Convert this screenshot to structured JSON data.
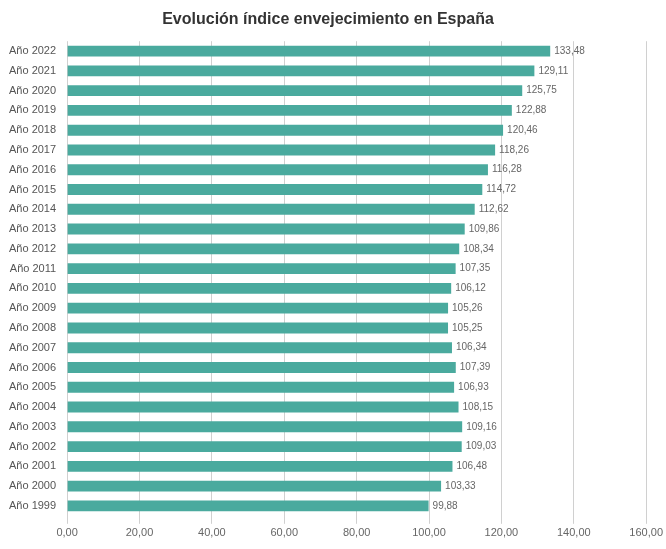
{
  "chart_data": {
    "type": "bar",
    "orientation": "horizontal",
    "title": "Evolución índice envejecimiento en España",
    "categories": [
      "Año 2022",
      "Año 2021",
      "Año 2020",
      "Año 2019",
      "Año 2018",
      "Año 2017",
      "Año 2016",
      "Año 2015",
      "Año 2014",
      "Año 2013",
      "Año 2012",
      "Año 2011",
      "Año 2010",
      "Año 2009",
      "Año 2008",
      "Año 2007",
      "Año 2006",
      "Año 2005",
      "Año 2004",
      "Año 2003",
      "Año 2002",
      "Año 2001",
      "Año 2000",
      "Año 1999"
    ],
    "values": [
      133.48,
      129.11,
      125.75,
      122.88,
      120.46,
      118.26,
      116.28,
      114.72,
      112.62,
      109.86,
      108.34,
      107.35,
      106.12,
      105.26,
      105.25,
      106.34,
      107.39,
      106.93,
      108.15,
      109.16,
      109.03,
      106.48,
      103.33,
      99.88
    ],
    "value_labels": [
      "133,48",
      "129,11",
      "125,75",
      "122,88",
      "120,46",
      "118,26",
      "116,28",
      "114,72",
      "112,62",
      "109,86",
      "108,34",
      "107,35",
      "106,12",
      "105,26",
      "105,25",
      "106,34",
      "107,39",
      "106,93",
      "108,15",
      "109,16",
      "109,03",
      "106,48",
      "103,33",
      "99,88"
    ],
    "data_labels": true,
    "color": "#4aaa9e",
    "xlim": [
      0,
      160
    ],
    "xticks": [
      {
        "value": 0,
        "label": "0,00"
      },
      {
        "value": 20,
        "label": "20,00"
      },
      {
        "value": 40,
        "label": "40,00"
      },
      {
        "value": 60,
        "label": "60,00"
      },
      {
        "value": 80,
        "label": "80,00"
      },
      {
        "value": 100,
        "label": "100,00"
      },
      {
        "value": 120,
        "label": "120,00"
      },
      {
        "value": 140,
        "label": "140,00"
      },
      {
        "value": 160,
        "label": "160,00"
      }
    ],
    "grid": true
  }
}
